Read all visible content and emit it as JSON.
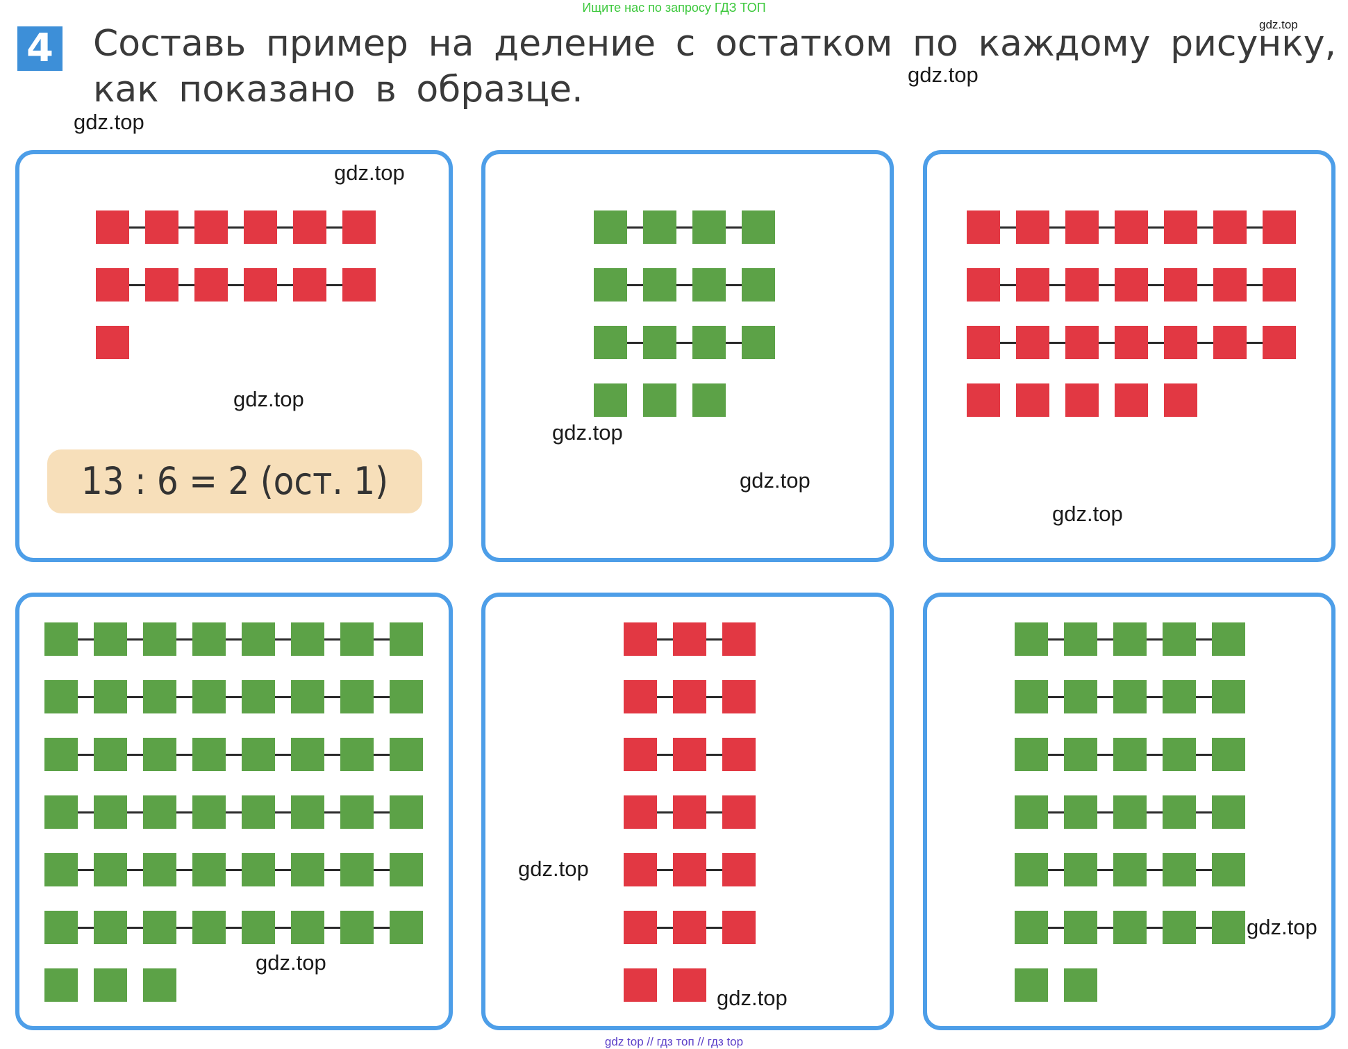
{
  "top_banner": "Ищите нас по запросу ГДЗ ТОП",
  "task": {
    "number": "4",
    "text": "Составь пример на деление с остатком по каждому рисунку, как показано в образце."
  },
  "example": "13 : 6 = 2 (ост. 1)",
  "colors": {
    "red": "#e23843",
    "green": "#5ca247",
    "frame": "#4d9ee8",
    "example_bg": "#f7dfba"
  },
  "panels": [
    {
      "color": "red",
      "rows": [
        6,
        6,
        1
      ]
    },
    {
      "color": "green",
      "rows": [
        4,
        4,
        4,
        3
      ]
    },
    {
      "color": "red",
      "rows": [
        7,
        7,
        7,
        5
      ]
    },
    {
      "color": "green",
      "rows": [
        8,
        8,
        8,
        8,
        8,
        8,
        3
      ]
    },
    {
      "color": "red",
      "rows": [
        3,
        3,
        3,
        3,
        3,
        3,
        2
      ]
    },
    {
      "color": "green",
      "rows": [
        5,
        5,
        5,
        5,
        5,
        5,
        2
      ]
    }
  ],
  "watermark": "gdz.top",
  "bottom_banner": "gdz top  //  гдз топ  //  гдз top"
}
